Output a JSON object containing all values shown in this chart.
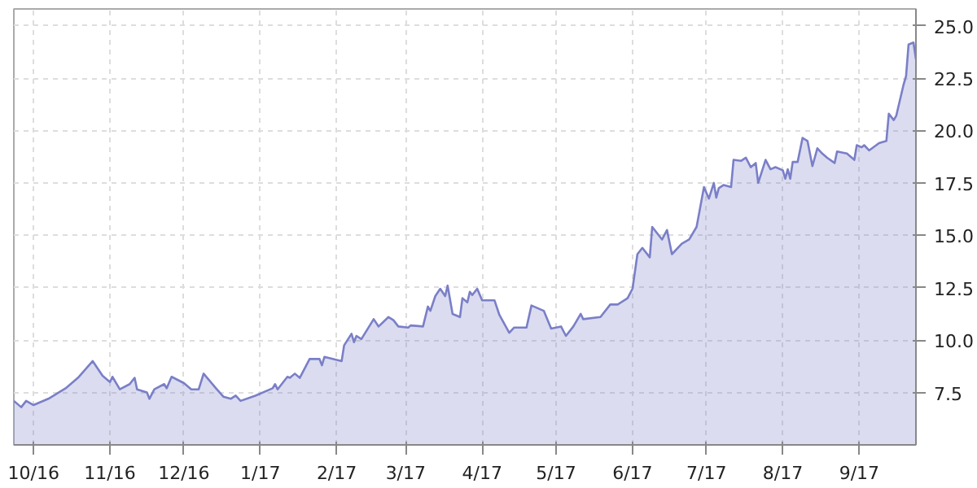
{
  "chart_data": {
    "type": "area",
    "xlim": [
      "2016-09-23",
      "2017-09-24"
    ],
    "ylim": [
      5.0,
      25.8
    ],
    "xticks": [
      {
        "value": "2016-10-01",
        "label": "10/16"
      },
      {
        "value": "2016-11-01",
        "label": "11/16"
      },
      {
        "value": "2016-12-01",
        "label": "12/16"
      },
      {
        "value": "2017-01-01",
        "label": "1/17"
      },
      {
        "value": "2017-02-01",
        "label": "2/17"
      },
      {
        "value": "2017-03-01",
        "label": "3/17"
      },
      {
        "value": "2017-04-01",
        "label": "4/17"
      },
      {
        "value": "2017-05-01",
        "label": "5/17"
      },
      {
        "value": "2017-06-01",
        "label": "6/17"
      },
      {
        "value": "2017-07-01",
        "label": "7/17"
      },
      {
        "value": "2017-08-01",
        "label": "8/17"
      },
      {
        "value": "2017-09-01",
        "label": "9/17"
      }
    ],
    "yticks": [
      {
        "value": 7.5,
        "label": "7.5"
      },
      {
        "value": 10,
        "label": "10.0"
      },
      {
        "value": 12.5,
        "label": "12.5"
      },
      {
        "value": 15,
        "label": "15.0"
      },
      {
        "value": 17.5,
        "label": "17.5"
      },
      {
        "value": 20,
        "label": "20.0"
      },
      {
        "value": 22.5,
        "label": "22.5"
      },
      {
        "value": 25,
        "label": "25.0"
      }
    ],
    "grid": true,
    "x": [
      "2016-09-23",
      "2016-09-26",
      "2016-09-28",
      "2016-10-01",
      "2016-10-07",
      "2016-10-14",
      "2016-10-19",
      "2016-10-25",
      "2016-10-29",
      "2016-11-01",
      "2016-11-02",
      "2016-11-05",
      "2016-11-09",
      "2016-11-11",
      "2016-11-12",
      "2016-11-16",
      "2016-11-17",
      "2016-11-19",
      "2016-11-23",
      "2016-11-24",
      "2016-11-26",
      "2016-12-01",
      "2016-12-04",
      "2016-12-07",
      "2016-12-09",
      "2016-12-14",
      "2016-12-17",
      "2016-12-20",
      "2016-12-22",
      "2016-12-24",
      "2016-12-30",
      "2017-01-06",
      "2017-01-07",
      "2017-01-08",
      "2017-01-12",
      "2017-01-13",
      "2017-01-15",
      "2017-01-17",
      "2017-01-21",
      "2017-01-25",
      "2017-01-26",
      "2017-01-27",
      "2017-02-03",
      "2017-02-04",
      "2017-02-07",
      "2017-02-08",
      "2017-02-09",
      "2017-02-11",
      "2017-02-16",
      "2017-02-18",
      "2017-02-22",
      "2017-02-24",
      "2017-02-26",
      "2017-03-02",
      "2017-03-03",
      "2017-03-08",
      "2017-03-10",
      "2017-03-11",
      "2017-03-13",
      "2017-03-15",
      "2017-03-17",
      "2017-03-18",
      "2017-03-20",
      "2017-03-23",
      "2017-03-24",
      "2017-03-26",
      "2017-03-27",
      "2017-03-28",
      "2017-03-30",
      "2017-04-01",
      "2017-04-06",
      "2017-04-08",
      "2017-04-12",
      "2017-04-14",
      "2017-04-19",
      "2017-04-21",
      "2017-04-26",
      "2017-04-29",
      "2017-05-03",
      "2017-05-05",
      "2017-05-08",
      "2017-05-11",
      "2017-05-12",
      "2017-05-19",
      "2017-05-23",
      "2017-05-26",
      "2017-05-30",
      "2017-06-01",
      "2017-06-03",
      "2017-06-05",
      "2017-06-08",
      "2017-06-09",
      "2017-06-13",
      "2017-06-15",
      "2017-06-17",
      "2017-06-21",
      "2017-06-24",
      "2017-06-27",
      "2017-06-30",
      "2017-07-02",
      "2017-07-04",
      "2017-07-05",
      "2017-07-06",
      "2017-07-08",
      "2017-07-11",
      "2017-07-12",
      "2017-07-15",
      "2017-07-17",
      "2017-07-19",
      "2017-07-21",
      "2017-07-22",
      "2017-07-25",
      "2017-07-27",
      "2017-07-29",
      "2017-08-01",
      "2017-08-02",
      "2017-08-03",
      "2017-08-04",
      "2017-08-05",
      "2017-08-07",
      "2017-08-09",
      "2017-08-11",
      "2017-08-13",
      "2017-08-15",
      "2017-08-17",
      "2017-08-19",
      "2017-08-22",
      "2017-08-23",
      "2017-08-27",
      "2017-08-30",
      "2017-08-31",
      "2017-09-02",
      "2017-09-03",
      "2017-09-05",
      "2017-09-09",
      "2017-09-12",
      "2017-09-13",
      "2017-09-15",
      "2017-09-16",
      "2017-09-19",
      "2017-09-20",
      "2017-09-21",
      "2017-09-23",
      "2017-09-24"
    ],
    "series": [
      {
        "color": "#7a7fc7",
        "values": [
          7.1,
          6.8,
          7.1,
          6.9,
          7.2,
          7.7,
          8.2,
          9.0,
          8.3,
          8.0,
          8.25,
          7.65,
          7.9,
          8.2,
          7.65,
          7.5,
          7.2,
          7.65,
          7.9,
          7.7,
          8.25,
          7.95,
          7.65,
          7.65,
          8.4,
          7.7,
          7.3,
          7.2,
          7.35,
          7.1,
          7.35,
          7.7,
          7.9,
          7.65,
          8.25,
          8.2,
          8.4,
          8.2,
          9.1,
          9.1,
          8.8,
          9.2,
          9.0,
          9.75,
          10.3,
          9.9,
          10.2,
          10.05,
          11.0,
          10.65,
          11.1,
          10.95,
          10.65,
          10.6,
          10.7,
          10.65,
          11.6,
          11.4,
          12.1,
          12.45,
          12.1,
          12.6,
          11.25,
          11.1,
          12.0,
          11.8,
          12.3,
          12.15,
          12.45,
          11.9,
          11.9,
          11.2,
          10.35,
          10.6,
          10.6,
          11.65,
          11.4,
          10.55,
          10.65,
          10.2,
          10.65,
          11.25,
          11.0,
          11.1,
          11.7,
          11.7,
          12.0,
          12.45,
          14.1,
          14.4,
          13.95,
          15.4,
          14.8,
          15.25,
          14.1,
          14.6,
          14.8,
          15.4,
          17.3,
          16.75,
          17.5,
          16.8,
          17.25,
          17.4,
          17.3,
          18.6,
          18.55,
          18.7,
          18.25,
          18.45,
          17.5,
          18.6,
          18.15,
          18.25,
          18.1,
          17.7,
          18.15,
          17.7,
          18.5,
          18.5,
          19.65,
          19.5,
          18.3,
          19.15,
          18.9,
          18.7,
          18.45,
          19.0,
          18.9,
          18.6,
          19.3,
          19.2,
          19.3,
          19.05,
          19.4,
          19.5,
          20.8,
          20.5,
          20.7,
          22.2,
          22.6,
          24.1,
          24.2,
          23.4
        ]
      }
    ]
  }
}
